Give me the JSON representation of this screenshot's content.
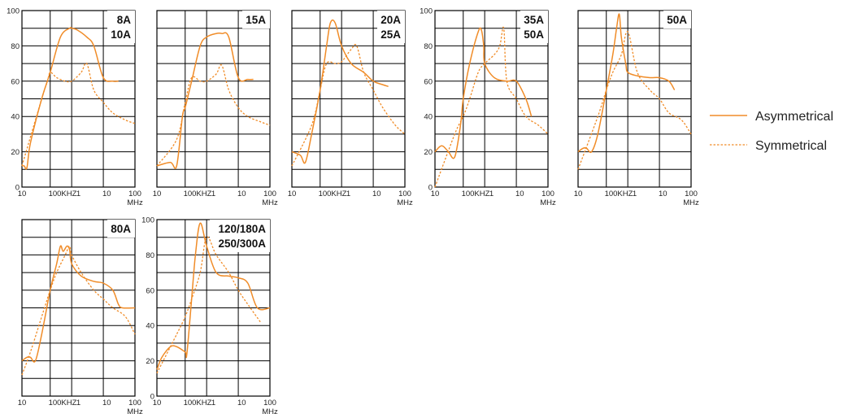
{
  "legend": {
    "items": [
      {
        "label": "Asymmetrical",
        "style": "solid"
      },
      {
        "label": "Symmetrical",
        "style": "dotted"
      }
    ],
    "line_color": "#F08C28"
  },
  "chart_data": [
    {
      "type": "line",
      "labels": [
        "8A",
        "10A"
      ],
      "y_ticks": [
        "0",
        "20",
        "40",
        "60",
        "80",
        "100"
      ],
      "x_ticks": [
        "10",
        "100KHZ",
        "1",
        "10",
        "100"
      ],
      "x_unit": "MHz",
      "xlim": [
        0.01,
        100
      ],
      "ylim": [
        0,
        100
      ],
      "grid": true,
      "series": [
        {
          "style": "solid",
          "x": [
            0.01,
            0.012,
            0.015,
            0.02,
            0.05,
            0.1,
            0.3,
            0.8,
            1,
            1.5,
            3,
            5,
            10,
            20,
            30
          ],
          "y": [
            12,
            12,
            11,
            25,
            50,
            65,
            85,
            90,
            90,
            89,
            85,
            80,
            62,
            60,
            60
          ]
        },
        {
          "style": "dotted",
          "x": [
            0.01,
            0.05,
            0.08,
            0.1,
            0.2,
            0.5,
            1,
            2,
            3,
            5,
            10,
            20,
            50,
            100
          ],
          "y": [
            12,
            50,
            60,
            65,
            62,
            60,
            60,
            65,
            70,
            55,
            48,
            42,
            38,
            36
          ]
        }
      ]
    },
    {
      "type": "line",
      "labels": [
        "15A"
      ],
      "y_ticks": [],
      "x_ticks": [
        "10",
        "100KHZ",
        "1",
        "10",
        "100"
      ],
      "x_unit": "MHz",
      "xlim": [
        0.01,
        100
      ],
      "ylim": [
        0,
        100
      ],
      "grid": true,
      "series": [
        {
          "style": "solid",
          "x": [
            0.01,
            0.03,
            0.05,
            0.08,
            0.1,
            0.2,
            0.5,
            1,
            2,
            3,
            5,
            10,
            20,
            30
          ],
          "y": [
            12,
            14,
            12,
            40,
            45,
            60,
            80,
            85,
            87,
            87,
            85,
            62,
            61,
            61
          ]
        },
        {
          "style": "dotted",
          "x": [
            0.01,
            0.05,
            0.1,
            0.2,
            0.5,
            1,
            2,
            3,
            5,
            10,
            20,
            50,
            100
          ],
          "y": [
            12,
            27,
            48,
            62,
            60,
            60,
            64,
            69,
            55,
            45,
            40,
            37,
            35
          ]
        }
      ]
    },
    {
      "type": "line",
      "labels": [
        "20A",
        "25A"
      ],
      "y_ticks": [],
      "x_ticks": [
        "10",
        "100KHZ",
        "1",
        "10",
        "100"
      ],
      "x_unit": "MHz",
      "xlim": [
        0.01,
        100
      ],
      "ylim": [
        0,
        100
      ],
      "grid": true,
      "series": [
        {
          "style": "solid",
          "x": [
            0.01,
            0.02,
            0.03,
            0.05,
            0.1,
            0.2,
            0.3,
            0.5,
            1,
            2,
            5,
            10,
            20,
            30
          ],
          "y": [
            20,
            18,
            14,
            30,
            55,
            80,
            93,
            93,
            80,
            70,
            65,
            60,
            58,
            57
          ]
        },
        {
          "style": "dotted",
          "x": [
            0.01,
            0.05,
            0.1,
            0.2,
            0.5,
            1,
            2,
            3,
            5,
            10,
            20,
            50,
            100
          ],
          "y": [
            12,
            35,
            55,
            70,
            70,
            71,
            78,
            80,
            65,
            55,
            45,
            35,
            30
          ]
        }
      ]
    },
    {
      "type": "line",
      "labels": [
        "35A",
        "50A"
      ],
      "y_ticks": [
        "0",
        "20",
        "40",
        "60",
        "80",
        "100"
      ],
      "x_ticks": [
        "10",
        "100KHZ",
        "1",
        "10",
        "100"
      ],
      "x_unit": "MHz",
      "xlim": [
        0.01,
        100
      ],
      "ylim": [
        0,
        100
      ],
      "grid": true,
      "series": [
        {
          "style": "solid",
          "x": [
            0.01,
            0.015,
            0.02,
            0.03,
            0.05,
            0.08,
            0.1,
            0.2,
            0.5,
            0.7,
            0.9,
            1,
            2,
            5,
            10,
            20,
            30
          ],
          "y": [
            20,
            23,
            23,
            20,
            17,
            35,
            50,
            70,
            88,
            89,
            80,
            70,
            62,
            60,
            60,
            50,
            40
          ]
        },
        {
          "style": "dotted",
          "x": [
            0.01,
            0.05,
            0.1,
            0.2,
            0.5,
            1,
            2,
            3,
            4,
            5,
            10,
            20,
            50,
            100
          ],
          "y": [
            0,
            30,
            40,
            50,
            65,
            70,
            75,
            80,
            90,
            60,
            50,
            40,
            35,
            30
          ]
        }
      ]
    },
    {
      "type": "line",
      "labels": [
        "50A"
      ],
      "y_ticks": [],
      "x_ticks": [
        "10",
        "100KHZ",
        "1",
        "10",
        "100"
      ],
      "x_unit": "MHz",
      "xlim": [
        0.01,
        100
      ],
      "ylim": [
        0,
        100
      ],
      "grid": true,
      "series": [
        {
          "style": "solid",
          "x": [
            0.01,
            0.015,
            0.02,
            0.03,
            0.05,
            0.1,
            0.2,
            0.3,
            0.4,
            0.5,
            0.8,
            1,
            2,
            5,
            10,
            20,
            30
          ],
          "y": [
            20,
            22,
            22,
            20,
            30,
            55,
            75,
            90,
            98,
            85,
            70,
            65,
            63,
            62,
            62,
            60,
            55
          ]
        },
        {
          "style": "dotted",
          "x": [
            0.01,
            0.05,
            0.1,
            0.2,
            0.5,
            1,
            2,
            5,
            10,
            20,
            50,
            100
          ],
          "y": [
            10,
            40,
            55,
            65,
            75,
            88,
            65,
            55,
            50,
            42,
            38,
            30
          ]
        }
      ]
    },
    {
      "type": "line",
      "labels": [
        "80A"
      ],
      "y_ticks": [],
      "x_ticks": [
        "10",
        "100KHZ",
        "1",
        "10",
        "100"
      ],
      "x_unit": "MHz",
      "xlim": [
        0.01,
        100
      ],
      "ylim": [
        0,
        100
      ],
      "grid": true,
      "series": [
        {
          "style": "solid",
          "x": [
            0.01,
            0.015,
            0.02,
            0.03,
            0.05,
            0.1,
            0.2,
            0.3,
            0.4,
            0.6,
            0.8,
            1,
            2,
            5,
            10,
            20,
            30,
            40,
            100
          ],
          "y": [
            20,
            22,
            22,
            20,
            35,
            60,
            75,
            85,
            82,
            85,
            83,
            75,
            68,
            65,
            64,
            60,
            52,
            50,
            50
          ]
        },
        {
          "style": "dotted",
          "x": [
            0.01,
            0.02,
            0.05,
            0.1,
            0.2,
            0.5,
            0.8,
            1,
            2,
            5,
            10,
            20,
            50,
            100
          ],
          "y": [
            12,
            25,
            45,
            60,
            70,
            80,
            85,
            80,
            70,
            60,
            55,
            50,
            45,
            35
          ]
        }
      ]
    },
    {
      "type": "line",
      "labels": [
        "120/180A",
        "250/300A"
      ],
      "y_ticks": [
        "0",
        "20",
        "40",
        "60",
        "80",
        "100"
      ],
      "x_ticks": [
        "10",
        "100KHZ",
        "1",
        "10",
        "100"
      ],
      "x_unit": "MHz",
      "xlim": [
        0.01,
        100
      ],
      "ylim": [
        0,
        100
      ],
      "grid": true,
      "series": [
        {
          "style": "solid",
          "x": [
            0.01,
            0.015,
            0.03,
            0.05,
            0.1,
            0.12,
            0.2,
            0.3,
            0.5,
            1,
            2,
            5,
            10,
            20,
            40,
            100
          ],
          "y": [
            15,
            22,
            28,
            28,
            25,
            24,
            55,
            80,
            98,
            85,
            70,
            68,
            67,
            64,
            50,
            50
          ]
        },
        {
          "style": "dotted",
          "x": [
            0.01,
            0.05,
            0.1,
            0.2,
            0.5,
            1,
            2,
            5,
            10,
            20,
            50
          ],
          "y": [
            13,
            35,
            45,
            55,
            70,
            90,
            80,
            70,
            60,
            52,
            42
          ]
        }
      ]
    }
  ]
}
